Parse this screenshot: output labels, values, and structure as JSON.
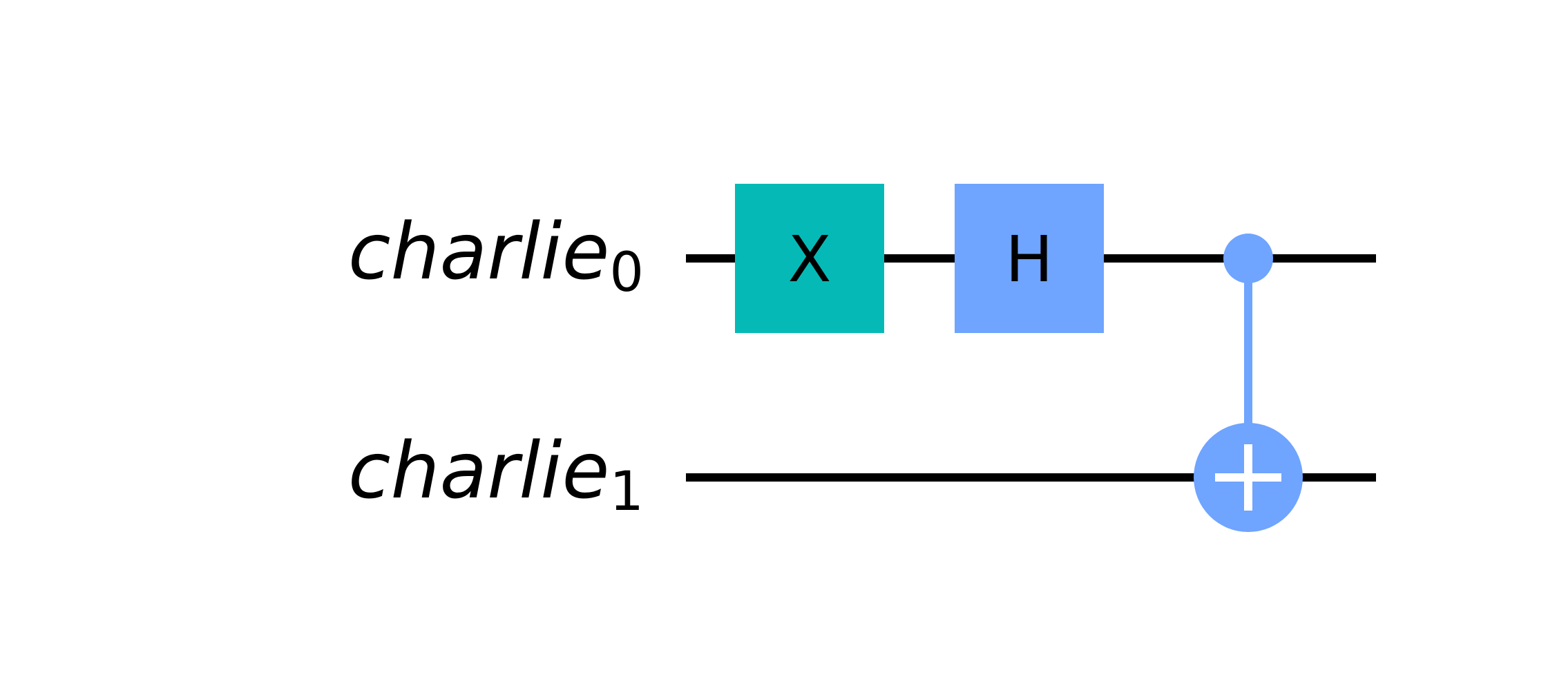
{
  "diagram": {
    "type": "quantum-circuit",
    "qubits": [
      {
        "name": "charlie",
        "index": "0"
      },
      {
        "name": "charlie",
        "index": "1"
      }
    ],
    "gates": [
      {
        "kind": "single",
        "label": "X",
        "qubit": 0,
        "step": 0,
        "color": "#05bab6"
      },
      {
        "kind": "single",
        "label": "H",
        "qubit": 0,
        "step": 1,
        "color": "#6fa4ff"
      },
      {
        "kind": "cnot",
        "control": 0,
        "target": 1,
        "step": 2,
        "color": "#6fa4ff"
      }
    ],
    "wire_color": "#000000",
    "background": "#ffffff"
  }
}
